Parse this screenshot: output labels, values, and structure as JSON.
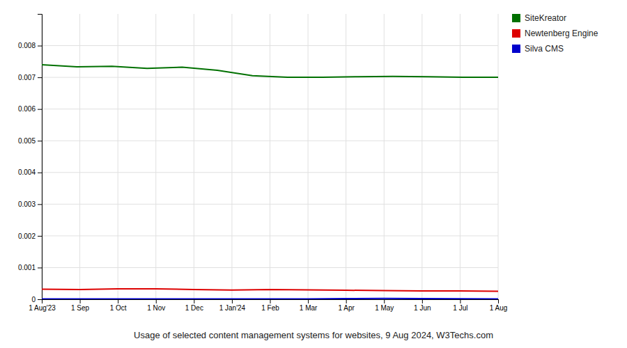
{
  "chart_data": {
    "type": "line",
    "title": "Usage of selected content management systems for websites, 9 Aug 2024, W3Techs.com",
    "xlim": [
      0,
      12
    ],
    "xticks": [
      {
        "value": 0,
        "label": "1 Aug'23"
      },
      {
        "value": 1,
        "label": "1 Sep"
      },
      {
        "value": 2,
        "label": "1 Oct"
      },
      {
        "value": 3,
        "label": "1 Nov"
      },
      {
        "value": 4,
        "label": "1 Dec"
      },
      {
        "value": 5,
        "label": "1 Jan'24"
      },
      {
        "value": 6,
        "label": "1 Feb"
      },
      {
        "value": 7,
        "label": "1 Mar"
      },
      {
        "value": 8,
        "label": "1 Apr"
      },
      {
        "value": 9,
        "label": "1 May"
      },
      {
        "value": 10,
        "label": "1 Jun"
      },
      {
        "value": 11,
        "label": "1 Jul"
      },
      {
        "value": 12,
        "label": "1 Aug"
      }
    ],
    "ylim": [
      0,
      0.009
    ],
    "yticks": [
      0,
      0.001,
      0.002,
      0.003,
      0.004,
      0.005,
      0.006,
      0.007,
      0.008
    ],
    "grid": true,
    "legend": "right",
    "series": [
      {
        "name": "SiteKreator",
        "color": "#007000",
        "x": [
          0,
          0.9230769230769231,
          1.8461538461538463,
          2.769230769230769,
          3.6923076923076925,
          4.615384615384615,
          5.538461538461538,
          6.461538461538462,
          7.384615384615385,
          8.307692307692308,
          9.23076923076923,
          10.153846153846153,
          11.076923076923077,
          12
        ],
        "values": [
          0.0074,
          0.00733,
          0.00735,
          0.00728,
          0.00732,
          0.00722,
          0.00705,
          0.007,
          0.007,
          0.00702,
          0.00703,
          0.00702,
          0.007,
          0.007
        ]
      },
      {
        "name": "Newtenberg Engine",
        "color": "#dd0000",
        "x": [
          0,
          1,
          2,
          3,
          4,
          5,
          6,
          7,
          8,
          9,
          10,
          11,
          12
        ],
        "values": [
          0.00032,
          0.00031,
          0.00033,
          0.00033,
          0.00031,
          0.00029,
          0.00031,
          0.000295,
          0.000285,
          0.000275,
          0.000265,
          0.000265,
          0.000255
        ]
      },
      {
        "name": "Silva CMS",
        "color": "#0000cc",
        "x": [
          0,
          1,
          2,
          3,
          4,
          5,
          6,
          7,
          8,
          9,
          10,
          11,
          12
        ],
        "values": [
          1e-05,
          1e-05,
          1e-05,
          1e-05,
          1e-05,
          1e-05,
          1e-05,
          1e-05,
          2e-05,
          3e-05,
          2e-05,
          1.5e-05,
          1e-05
        ]
      }
    ]
  }
}
